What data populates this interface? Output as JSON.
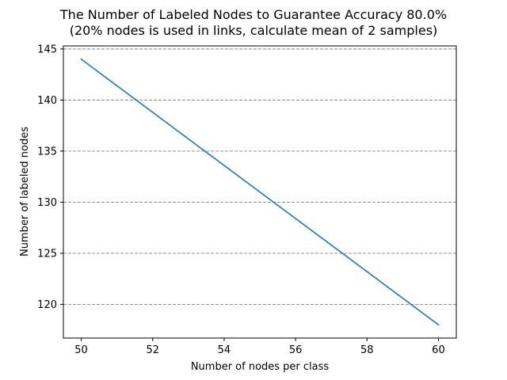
{
  "chart_data": {
    "type": "line",
    "title": "The Number of Labeled Nodes to Guarantee Accuracy 80.0%",
    "subtitle": "(20% nodes is used in links, calculate mean of 2 samples)",
    "xlabel": "Number of nodes per class",
    "ylabel": "Number of labeled nodes",
    "x": [
      50,
      60
    ],
    "series": [
      {
        "values": [
          144,
          118
        ],
        "color": "#1f77b4"
      }
    ],
    "xlim": [
      49.5,
      60.5
    ],
    "ylim": [
      116.7,
      145.3
    ],
    "xticks": [
      50,
      52,
      54,
      56,
      58,
      60
    ],
    "yticks": [
      120,
      125,
      130,
      135,
      140,
      145
    ],
    "grid": {
      "axis": "y",
      "style": "dashed",
      "color": "#808080"
    }
  }
}
